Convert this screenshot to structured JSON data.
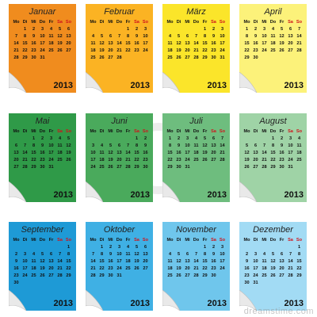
{
  "year": "2013",
  "weekdays": [
    "Mo",
    "Di",
    "Mi",
    "Do",
    "Fr",
    "Sa",
    "So"
  ],
  "watermark": "dreamstime.com",
  "months": [
    {
      "name": "Januar",
      "color": "#f08c1e",
      "first_weekday": 2,
      "days": 31
    },
    {
      "name": "Februar",
      "color": "#fbb323",
      "first_weekday": 5,
      "days": 28
    },
    {
      "name": "März",
      "color": "#fbe52a",
      "first_weekday": 5,
      "days": 31
    },
    {
      "name": "April",
      "color": "#fcf27a",
      "first_weekday": 1,
      "days": 30
    },
    {
      "name": "Mai",
      "color": "#2f9a48",
      "first_weekday": 3,
      "days": 31
    },
    {
      "name": "Juni",
      "color": "#4aaa5c",
      "first_weekday": 6,
      "days": 30
    },
    {
      "name": "Juli",
      "color": "#6ebd7e",
      "first_weekday": 1,
      "days": 31
    },
    {
      "name": "August",
      "color": "#9fd3a6",
      "first_weekday": 4,
      "days": 31
    },
    {
      "name": "September",
      "color": "#1e9ad6",
      "first_weekday": 7,
      "days": 30
    },
    {
      "name": "Oktober",
      "color": "#3fb0e4",
      "first_weekday": 2,
      "days": 31
    },
    {
      "name": "November",
      "color": "#6fc6ec",
      "first_weekday": 5,
      "days": 30
    },
    {
      "name": "Dezember",
      "color": "#a2dbf4",
      "first_weekday": 7,
      "days": 31
    }
  ]
}
